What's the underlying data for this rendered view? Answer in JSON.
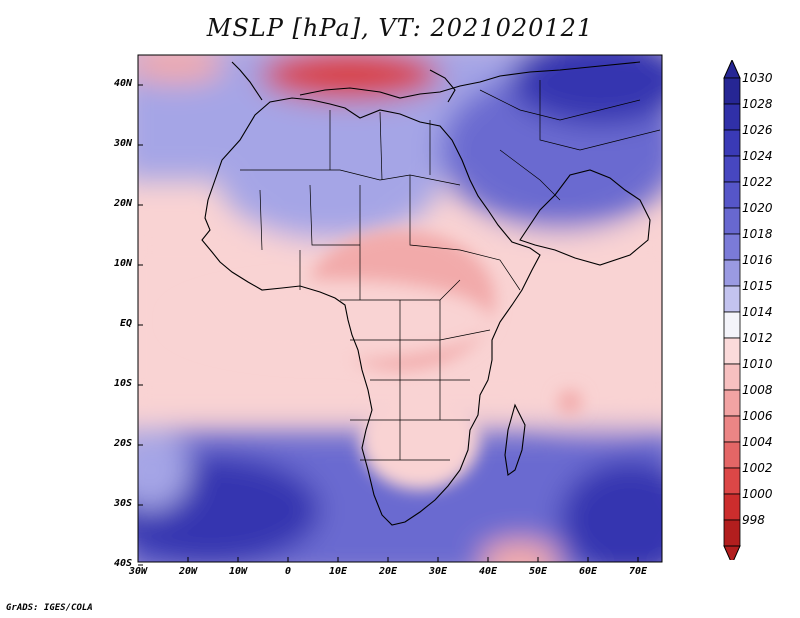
{
  "title": "MSLP [hPa], VT: 2021020121",
  "credit": "GrADS: IGES/COLA",
  "lat_labels": [
    "40N",
    "30N",
    "20N",
    "10N",
    "EQ",
    "10S",
    "20S",
    "30S",
    "40S"
  ],
  "lon_labels": [
    "30W",
    "20W",
    "10W",
    "0",
    "10E",
    "20E",
    "30E",
    "40E",
    "50E",
    "60E",
    "70E"
  ],
  "colorbar": {
    "levels": [
      "1030",
      "1028",
      "1026",
      "1024",
      "1022",
      "1020",
      "1018",
      "1016",
      "1015",
      "1014",
      "1012",
      "1010",
      "1008",
      "1006",
      "1004",
      "1002",
      "1000",
      "998"
    ],
    "colors": [
      "#262694",
      "#3030a8",
      "#3a3ab6",
      "#4747c0",
      "#5656c8",
      "#6868d0",
      "#7b7bd8",
      "#9a9ae2",
      "#c3c3ef",
      "#f4f4fa",
      "#fbdada",
      "#f7c0c0",
      "#f2a3a3",
      "#ec8585",
      "#e46666",
      "#dc4747",
      "#cc2d2d",
      "#b21e1e"
    ]
  },
  "map_colors": {
    "high_deep": "#3535b0",
    "high_mid": "#6a6ad0",
    "high_light": "#a5a5e6",
    "neutral": "#f6f2f6",
    "low_light": "#f9d3d3",
    "low_mid": "#f2aaaa",
    "low_deep": "#d84040",
    "land_outline": "#000000"
  }
}
